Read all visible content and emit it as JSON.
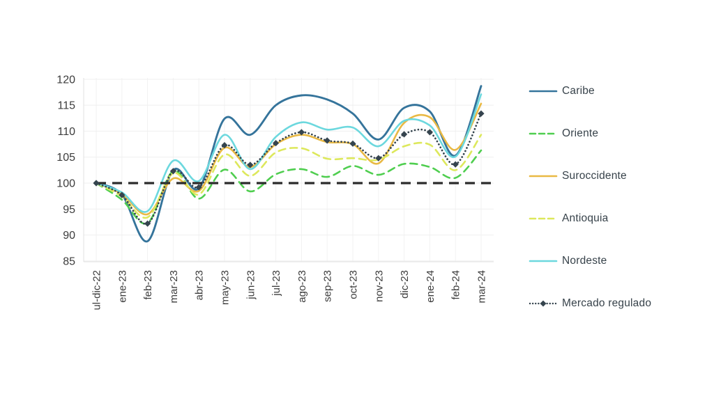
{
  "chart_data": {
    "type": "line",
    "title": "",
    "categories": [
      "ul-dic-22",
      "ene-23",
      "feb-23",
      "mar-23",
      "abr-23",
      "may-23",
      "jun-23",
      "jul-23",
      "ago-23",
      "sep-23",
      "oct-23",
      "nov-23",
      "dic-23",
      "ene-24",
      "feb-24",
      "mar-24"
    ],
    "y_ticks": [
      85,
      90,
      95,
      100,
      105,
      110,
      115,
      120
    ],
    "ylim": [
      85,
      120
    ],
    "grid": true,
    "legend_position": "right",
    "reference_line": {
      "value": 100,
      "color": "#2b2b2b",
      "style": "dashed"
    },
    "series": [
      {
        "name": "Caribe",
        "color": "#35749b",
        "style": "solid",
        "values": [
          100,
          97.8,
          88.8,
          102.5,
          99.0,
          112.4,
          109.3,
          115.0,
          116.9,
          116.1,
          113.4,
          108.4,
          114.5,
          113.8,
          105.3,
          118.7
        ]
      },
      {
        "name": "Oriente",
        "color": "#4fce4f",
        "style": "dashed",
        "values": [
          100,
          96.8,
          92.3,
          102.3,
          97.0,
          102.6,
          98.4,
          101.7,
          102.7,
          101.2,
          103.3,
          101.6,
          103.7,
          103.1,
          101.0,
          106.3
        ]
      },
      {
        "name": "Suroccidente",
        "color": "#e9b944",
        "style": "solid",
        "values": [
          100,
          97.9,
          94.0,
          100.9,
          98.5,
          106.8,
          103.1,
          107.5,
          109.3,
          107.9,
          107.5,
          103.8,
          111.6,
          112.7,
          106.4,
          115.3
        ]
      },
      {
        "name": "Antioquia",
        "color": "#dde85c",
        "style": "dashed",
        "values": [
          100,
          97.4,
          93.4,
          101.9,
          97.8,
          105.5,
          101.4,
          105.9,
          106.7,
          104.7,
          104.8,
          104.5,
          107.1,
          107.4,
          102.5,
          109.3
        ]
      },
      {
        "name": "Nordeste",
        "color": "#6cd8de",
        "style": "solid",
        "values": [
          100,
          98.2,
          94.6,
          104.3,
          100.4,
          109.3,
          102.7,
          108.9,
          111.7,
          110.3,
          110.7,
          107.1,
          112.0,
          111.1,
          105.1,
          117.1
        ]
      },
      {
        "name": "Mercado regulado",
        "color": "#35444e",
        "style": "dotted-diamond",
        "values": [
          100,
          97.7,
          92.2,
          102.3,
          99.2,
          107.3,
          103.5,
          107.7,
          109.8,
          108.2,
          107.6,
          104.8,
          109.4,
          109.8,
          103.6,
          113.4
        ]
      }
    ]
  }
}
